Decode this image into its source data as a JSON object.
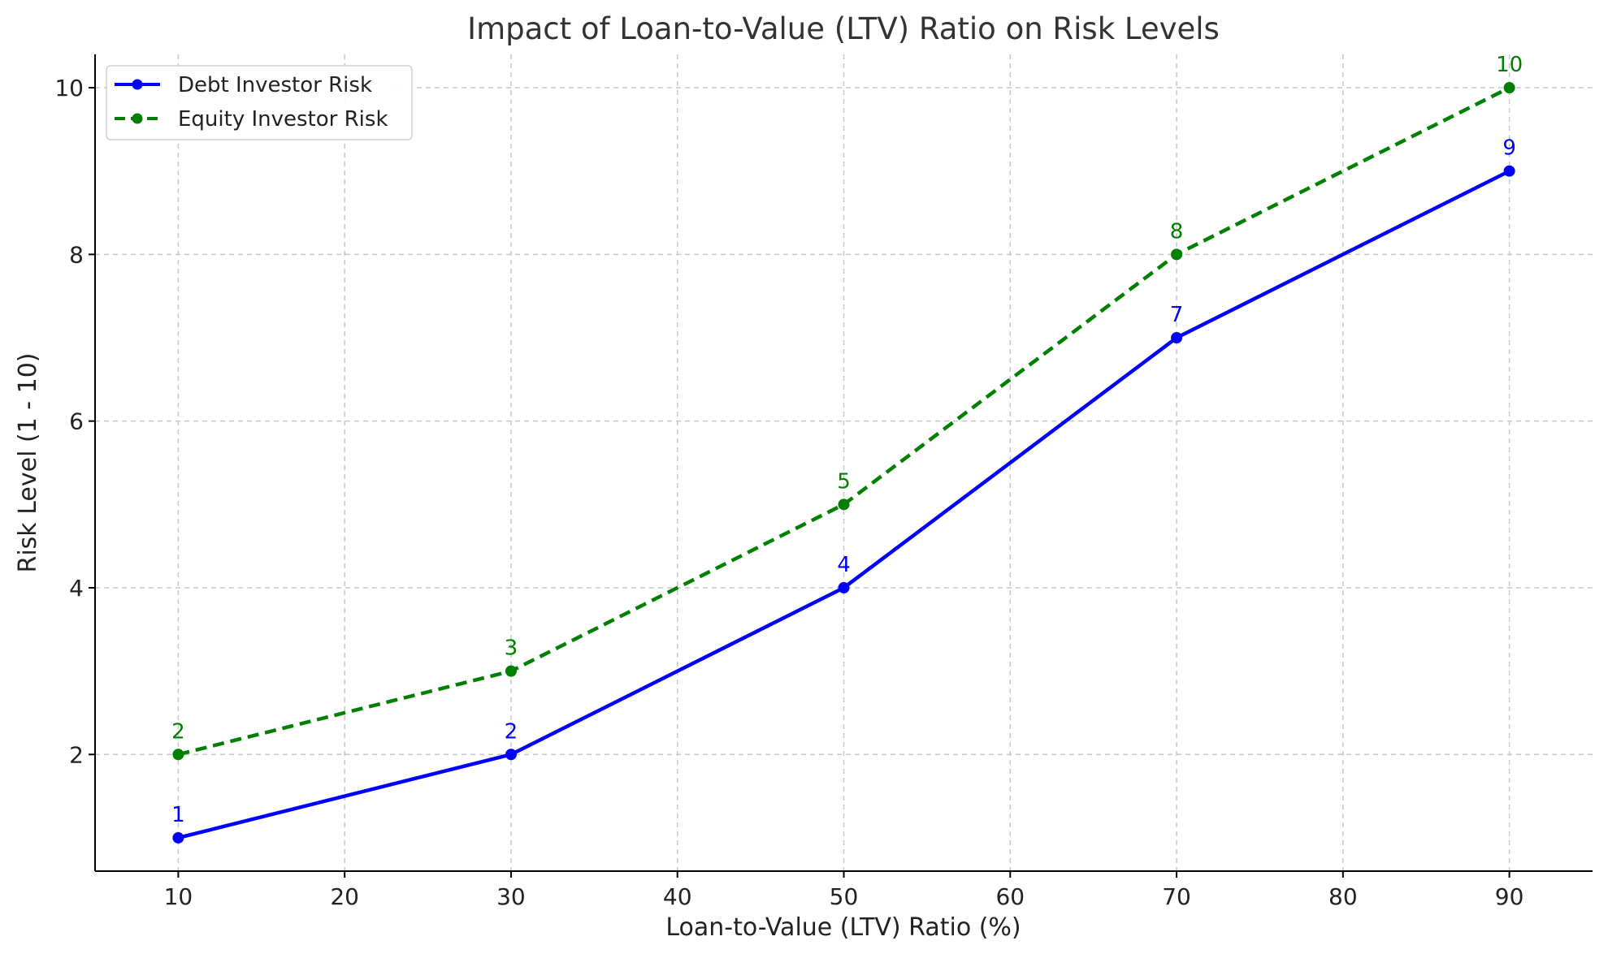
{
  "chart_data": {
    "type": "line",
    "title": "Impact of Loan-to-Value (LTV) Ratio on Risk Levels",
    "xlabel": "Loan-to-Value (LTV) Ratio (%)",
    "ylabel": "Risk Level (1 - 10)",
    "xlim": [
      5,
      95
    ],
    "ylim": [
      0.6,
      10.4
    ],
    "xticks": [
      10,
      20,
      30,
      40,
      50,
      60,
      70,
      80,
      90
    ],
    "yticks": [
      2,
      4,
      6,
      8,
      10
    ],
    "x": [
      10,
      30,
      50,
      70,
      90
    ],
    "grid": true,
    "legend_position": "upper-left",
    "series": [
      {
        "name": "Debt Investor Risk",
        "values": [
          1,
          2,
          4,
          7,
          9
        ],
        "color": "#0000ff",
        "line_style": "solid",
        "marker": "circle",
        "show_data_labels": true
      },
      {
        "name": "Equity Investor Risk",
        "values": [
          2,
          3,
          5,
          8,
          10
        ],
        "color": "#008000",
        "line_style": "dashed",
        "marker": "circle",
        "show_data_labels": true
      }
    ]
  }
}
